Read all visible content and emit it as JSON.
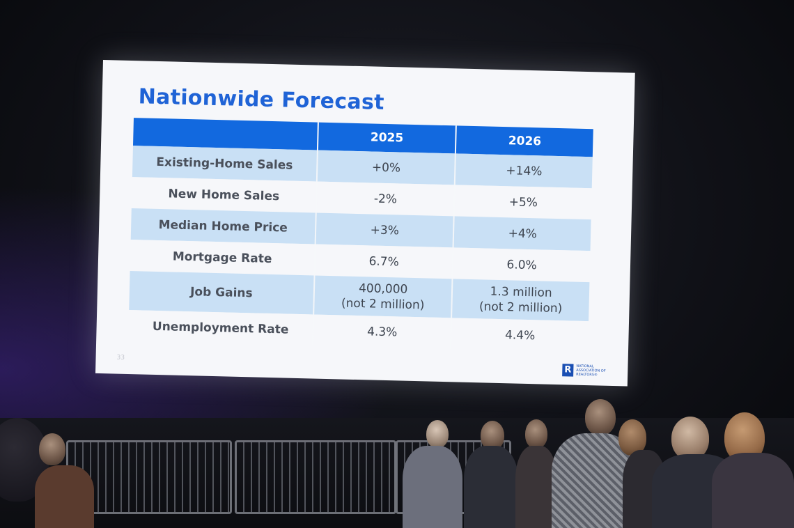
{
  "slide": {
    "title": "Nationwide Forecast",
    "page_number": "33",
    "logo": {
      "mark": "R",
      "text": "NATIONAL ASSOCIATION OF REALTORS®"
    }
  },
  "table": {
    "columns": [
      "",
      "2025",
      "2026"
    ],
    "rows": [
      {
        "label": "Existing-Home Sales",
        "y2025": "+0%",
        "y2026": "+14%"
      },
      {
        "label": "New Home Sales",
        "y2025": "-2%",
        "y2026": "+5%"
      },
      {
        "label": "Median Home Price",
        "y2025": "+3%",
        "y2026": "+4%"
      },
      {
        "label": "Mortgage Rate",
        "y2025": "6.7%",
        "y2026": "6.0%"
      },
      {
        "label": "Job Gains",
        "y2025": "400,000\n(not 2 million)",
        "y2026": "1.3 million\n(not 2 million)"
      },
      {
        "label": "Unemployment Rate",
        "y2025": "4.3%",
        "y2026": "4.4%"
      }
    ]
  },
  "colors": {
    "title": "#1f63d6",
    "header": "#1269df",
    "shaded_row": "#c9e0f5"
  }
}
